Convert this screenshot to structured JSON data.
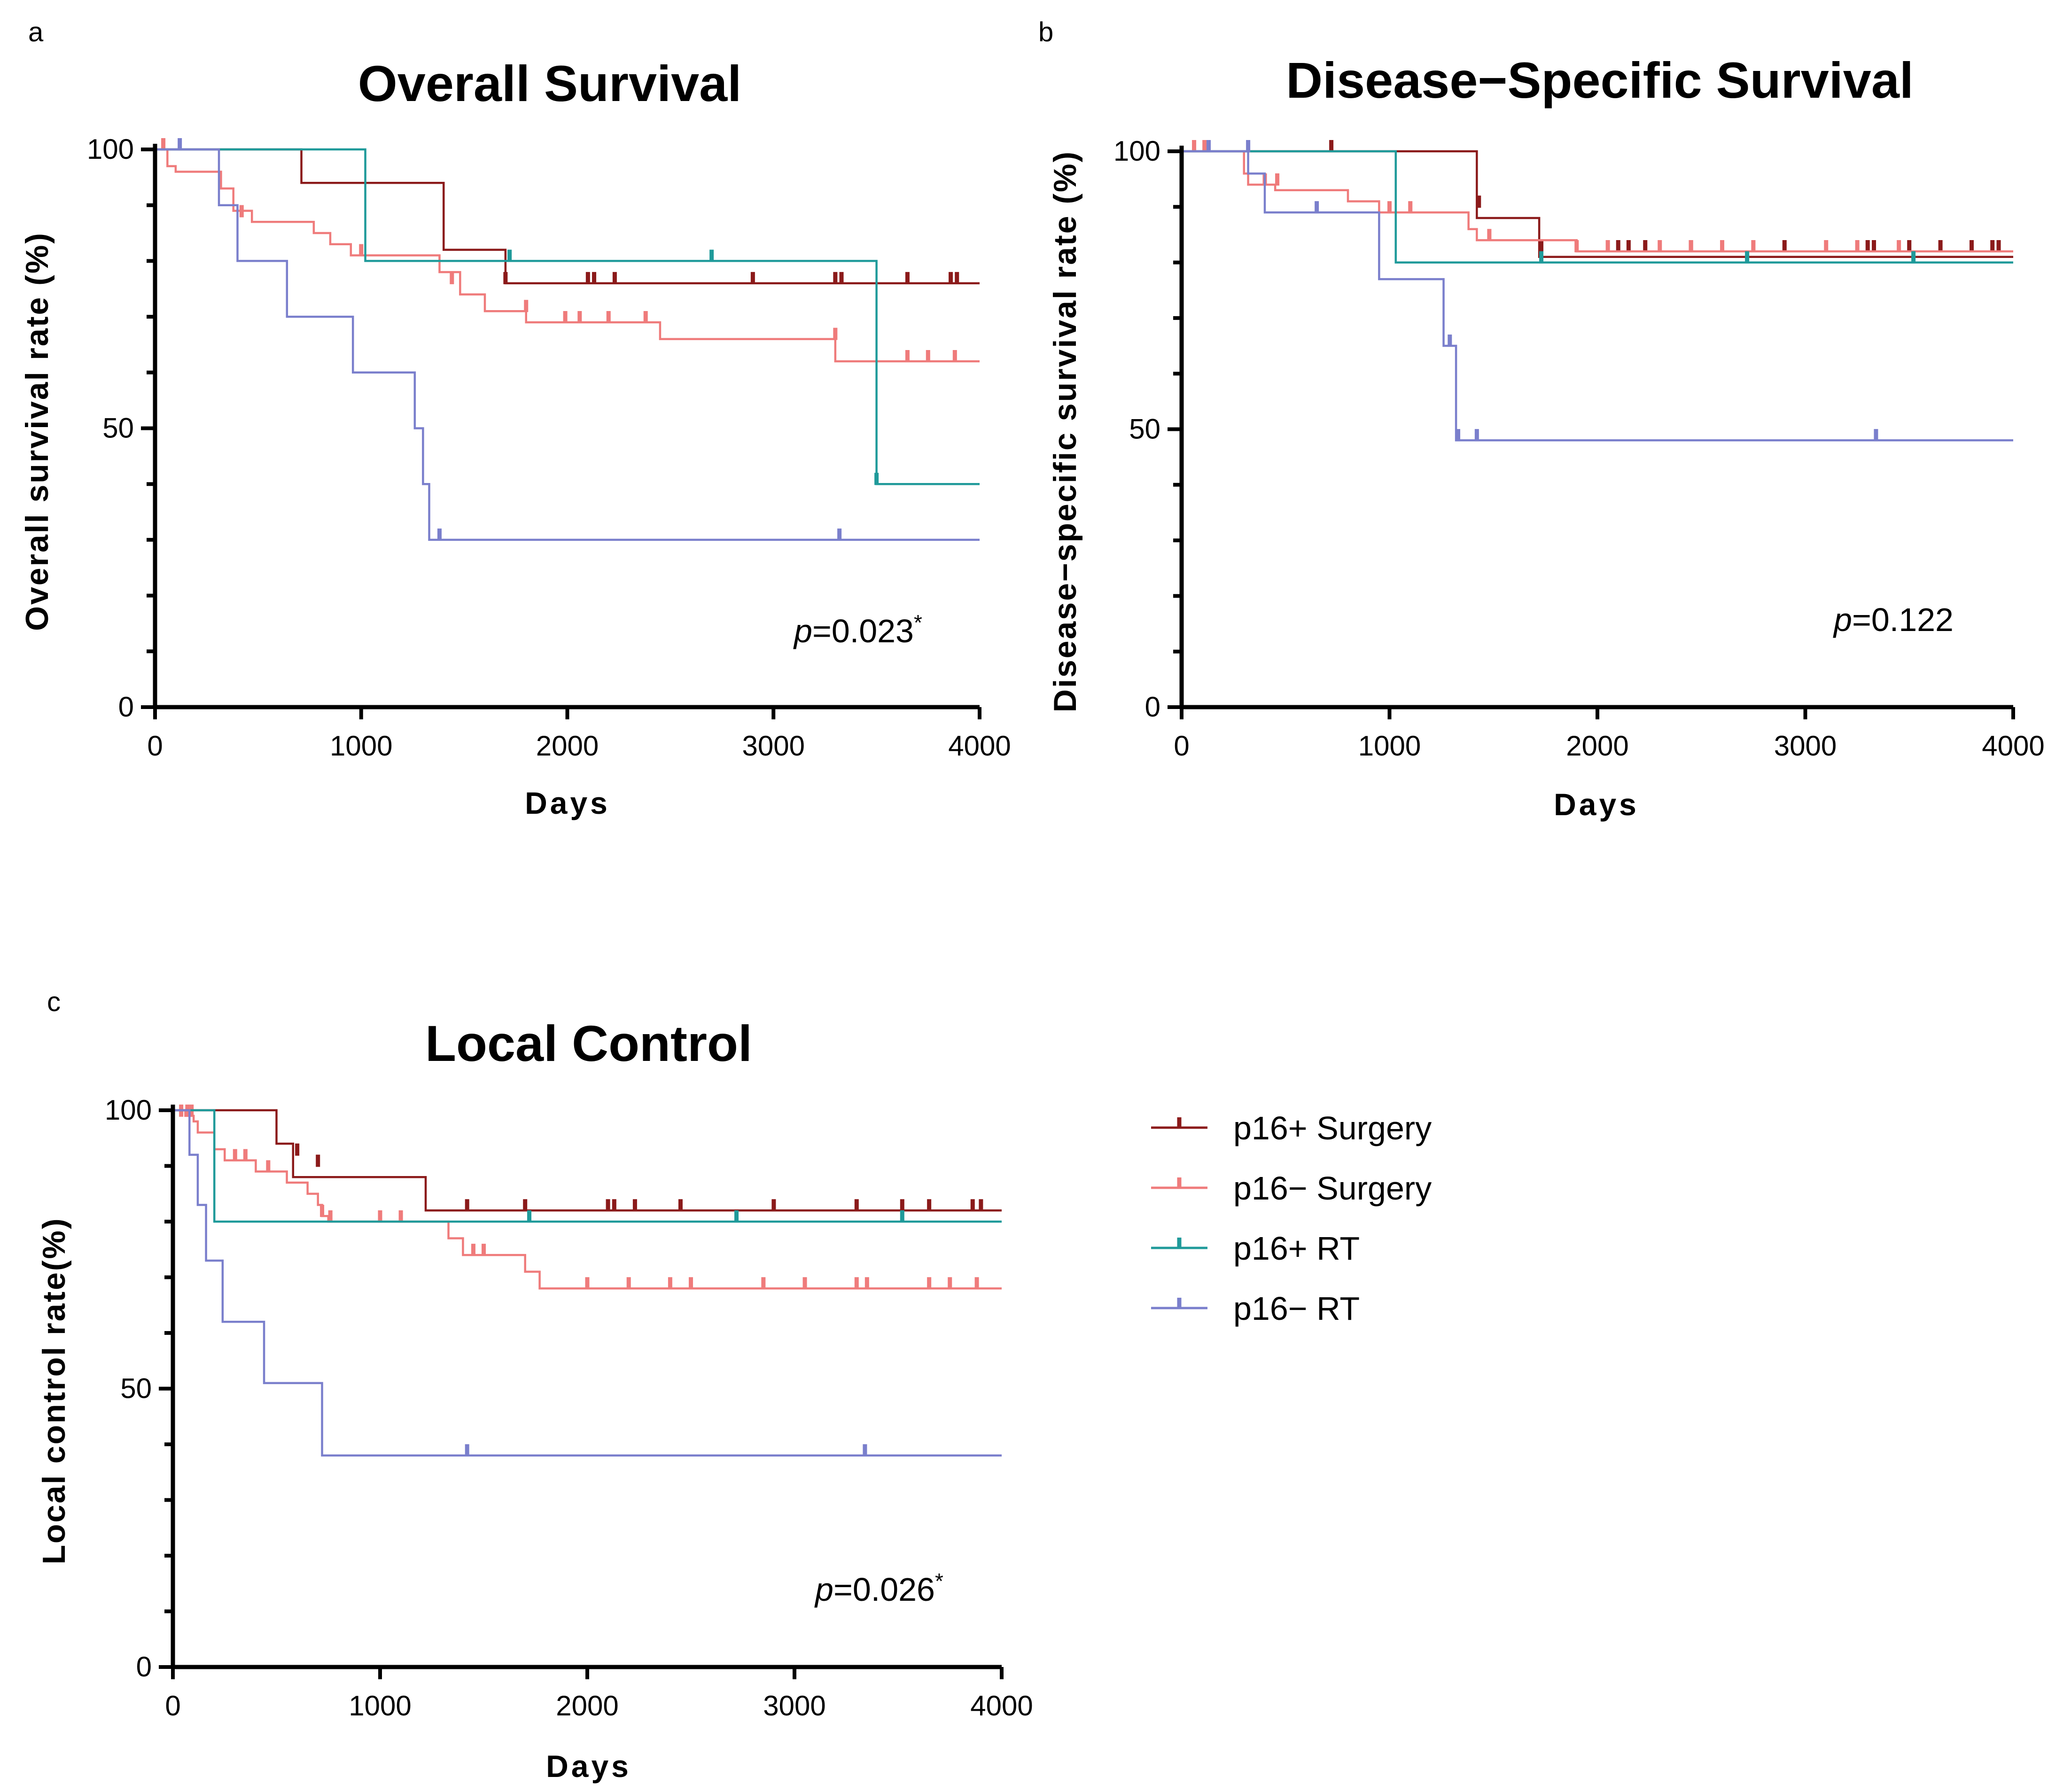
{
  "colors": {
    "p16pos_surgery": "#8b1a1a",
    "p16neg_surgery": "#ef7b7b",
    "p16pos_rt": "#1f9a9a",
    "p16neg_rt": "#7a7fcc"
  },
  "legend": {
    "items": [
      {
        "key": "p16pos_surgery",
        "label": "p16+ Surgery"
      },
      {
        "key": "p16neg_surgery",
        "label": "p16− Surgery"
      },
      {
        "key": "p16pos_rt",
        "label": "p16+ RT"
      },
      {
        "key": "p16neg_rt",
        "label": "p16− RT"
      }
    ]
  },
  "chart_data": [
    {
      "panel": "a",
      "type": "line",
      "step": true,
      "title": "Overall Survival",
      "xlabel": "Days",
      "ylabel": "Overall survival rate (%)",
      "xlim": [
        0,
        4000
      ],
      "ylim": [
        0,
        100
      ],
      "xticks": [
        "0",
        "1000",
        "2000",
        "3000",
        "4000"
      ],
      "yticks": [
        "0",
        "50",
        "100"
      ],
      "p_value": {
        "label": "p",
        "text": "=0.023",
        "mark": "*"
      },
      "series": [
        {
          "key": "p16pos_surgery",
          "name": "p16+ Surgery",
          "steps": [
            [
              0,
              100
            ],
            [
              710,
              94
            ],
            [
              1400,
              82
            ],
            [
              1700,
              76
            ],
            [
              4000,
              76
            ]
          ],
          "censored": [
            [
              1700,
              76
            ],
            [
              2100,
              76
            ],
            [
              2130,
              76
            ],
            [
              2230,
              76
            ],
            [
              2900,
              76
            ],
            [
              3300,
              76
            ],
            [
              3330,
              76
            ],
            [
              3650,
              76
            ],
            [
              3860,
              76
            ],
            [
              3890,
              76
            ]
          ]
        },
        {
          "key": "p16neg_surgery",
          "name": "p16− Surgery",
          "steps": [
            [
              0,
              100
            ],
            [
              60,
              97
            ],
            [
              100,
              96
            ],
            [
              320,
              93
            ],
            [
              380,
              89
            ],
            [
              470,
              87
            ],
            [
              770,
              85
            ],
            [
              850,
              83
            ],
            [
              950,
              81
            ],
            [
              1380,
              78
            ],
            [
              1480,
              74
            ],
            [
              1600,
              71
            ],
            [
              1800,
              69
            ],
            [
              2450,
              66
            ],
            [
              3300,
              62
            ],
            [
              4000,
              62
            ]
          ],
          "censored": [
            [
              40,
              100
            ],
            [
              420,
              88
            ],
            [
              1000,
              81
            ],
            [
              1440,
              76
            ],
            [
              1800,
              71
            ],
            [
              1990,
              69
            ],
            [
              2060,
              69
            ],
            [
              2200,
              69
            ],
            [
              2380,
              69
            ],
            [
              3300,
              66
            ],
            [
              3650,
              62
            ],
            [
              3750,
              62
            ],
            [
              3880,
              62
            ]
          ]
        },
        {
          "key": "p16pos_rt",
          "name": "p16+ RT",
          "steps": [
            [
              0,
              100
            ],
            [
              1020,
              80
            ],
            [
              3500,
              40
            ],
            [
              4000,
              40
            ]
          ],
          "censored": [
            [
              1720,
              80
            ],
            [
              2700,
              80
            ],
            [
              3500,
              40
            ]
          ]
        },
        {
          "key": "p16neg_rt",
          "name": "p16− RT",
          "steps": [
            [
              0,
              100
            ],
            [
              310,
              90
            ],
            [
              400,
              80
            ],
            [
              640,
              70
            ],
            [
              960,
              60
            ],
            [
              1260,
              50
            ],
            [
              1300,
              40
            ],
            [
              1330,
              30
            ],
            [
              4000,
              30
            ]
          ],
          "censored": [
            [
              120,
              100
            ],
            [
              1380,
              30
            ],
            [
              3320,
              30
            ]
          ]
        }
      ]
    },
    {
      "panel": "b",
      "type": "line",
      "step": true,
      "title": "Disease−Specific Survival",
      "xlabel": "Days",
      "ylabel": "Disease−specific survival rate (%)",
      "xlim": [
        0,
        4000
      ],
      "ylim": [
        0,
        100
      ],
      "xticks": [
        "0",
        "1000",
        "2000",
        "3000",
        "4000"
      ],
      "yticks": [
        "0",
        "50",
        "100"
      ],
      "p_value": {
        "label": "p",
        "text": "=0.122",
        "mark": ""
      },
      "series": [
        {
          "key": "p16pos_surgery",
          "name": "p16+ Surgery",
          "steps": [
            [
              0,
              100
            ],
            [
              1420,
              88
            ],
            [
              1720,
              81
            ],
            [
              4000,
              81
            ]
          ],
          "censored": [
            [
              720,
              100
            ],
            [
              1430,
              90
            ],
            [
              1730,
              82
            ],
            [
              2100,
              82
            ],
            [
              2150,
              82
            ],
            [
              2230,
              82
            ],
            [
              2450,
              82
            ],
            [
              2900,
              82
            ],
            [
              3300,
              82
            ],
            [
              3330,
              82
            ],
            [
              3500,
              82
            ],
            [
              3650,
              82
            ],
            [
              3800,
              82
            ],
            [
              3900,
              82
            ],
            [
              3930,
              82
            ]
          ]
        },
        {
          "key": "p16neg_surgery",
          "name": "p16− Surgery",
          "steps": [
            [
              0,
              100
            ],
            [
              300,
              96
            ],
            [
              320,
              94
            ],
            [
              450,
              93
            ],
            [
              800,
              91
            ],
            [
              950,
              89
            ],
            [
              1380,
              86
            ],
            [
              1420,
              84
            ],
            [
              1900,
              82
            ],
            [
              4000,
              82
            ]
          ],
          "censored": [
            [
              60,
              100
            ],
            [
              110,
              100
            ],
            [
              400,
              94
            ],
            [
              460,
              94
            ],
            [
              1000,
              89
            ],
            [
              1100,
              89
            ],
            [
              1480,
              84
            ],
            [
              1900,
              82
            ],
            [
              2050,
              82
            ],
            [
              2300,
              82
            ],
            [
              2450,
              82
            ],
            [
              2600,
              82
            ],
            [
              2750,
              82
            ],
            [
              3100,
              82
            ],
            [
              3250,
              82
            ],
            [
              3450,
              82
            ]
          ]
        },
        {
          "key": "p16pos_rt",
          "name": "p16+ RT",
          "steps": [
            [
              0,
              100
            ],
            [
              1030,
              80
            ],
            [
              4000,
              80
            ]
          ],
          "censored": [
            [
              1730,
              80
            ],
            [
              2720,
              80
            ],
            [
              3520,
              80
            ]
          ]
        },
        {
          "key": "p16neg_rt",
          "name": "p16− RT",
          "steps": [
            [
              0,
              100
            ],
            [
              320,
              96
            ],
            [
              400,
              89
            ],
            [
              950,
              77
            ],
            [
              1260,
              65
            ],
            [
              1320,
              48
            ],
            [
              4000,
              48
            ]
          ],
          "censored": [
            [
              130,
              100
            ],
            [
              320,
              100
            ],
            [
              650,
              89
            ],
            [
              1290,
              65
            ],
            [
              1330,
              48
            ],
            [
              1420,
              48
            ],
            [
              3340,
              48
            ]
          ]
        }
      ]
    },
    {
      "panel": "c",
      "type": "line",
      "step": true,
      "title": "Local Control",
      "xlabel": "Days",
      "ylabel": "Local control rate(%)",
      "xlim": [
        0,
        4000
      ],
      "ylim": [
        0,
        100
      ],
      "xticks": [
        "0",
        "1000",
        "2000",
        "3000",
        "4000"
      ],
      "yticks": [
        "0",
        "50",
        "100"
      ],
      "p_value": {
        "label": "p",
        "text": "=0.026",
        "mark": "*"
      },
      "series": [
        {
          "key": "p16pos_surgery",
          "name": "p16+ Surgery",
          "steps": [
            [
              0,
              100
            ],
            [
              500,
              94
            ],
            [
              580,
              88
            ],
            [
              1220,
              82
            ],
            [
              4000,
              82
            ]
          ],
          "censored": [
            [
              600,
              92
            ],
            [
              700,
              90
            ],
            [
              1420,
              82
            ],
            [
              1700,
              82
            ],
            [
              2100,
              82
            ],
            [
              2130,
              82
            ],
            [
              2230,
              82
            ],
            [
              2450,
              82
            ],
            [
              2900,
              82
            ],
            [
              3300,
              82
            ],
            [
              3520,
              82
            ],
            [
              3650,
              82
            ],
            [
              3860,
              82
            ],
            [
              3900,
              82
            ]
          ]
        },
        {
          "key": "p16neg_surgery",
          "name": "p16− Surgery",
          "steps": [
            [
              0,
              100
            ],
            [
              60,
              99
            ],
            [
              100,
              98
            ],
            [
              120,
              96
            ],
            [
              200,
              93
            ],
            [
              250,
              91
            ],
            [
              400,
              89
            ],
            [
              550,
              87
            ],
            [
              650,
              85
            ],
            [
              700,
              83
            ],
            [
              720,
              81
            ],
            [
              750,
              80
            ],
            [
              1330,
              77
            ],
            [
              1400,
              74
            ],
            [
              1700,
              71
            ],
            [
              1770,
              68
            ],
            [
              4000,
              68
            ]
          ],
          "censored": [
            [
              40,
              99
            ],
            [
              70,
              99
            ],
            [
              90,
              99
            ],
            [
              300,
              91
            ],
            [
              350,
              91
            ],
            [
              460,
              89
            ],
            [
              720,
              81
            ],
            [
              760,
              80
            ],
            [
              1000,
              80
            ],
            [
              1100,
              80
            ],
            [
              1450,
              74
            ],
            [
              1500,
              74
            ],
            [
              2000,
              68
            ],
            [
              2200,
              68
            ],
            [
              2400,
              68
            ],
            [
              2500,
              68
            ],
            [
              2850,
              68
            ],
            [
              3050,
              68
            ],
            [
              3300,
              68
            ],
            [
              3350,
              68
            ],
            [
              3650,
              68
            ],
            [
              3750,
              68
            ],
            [
              3880,
              68
            ]
          ]
        },
        {
          "key": "p16pos_rt",
          "name": "p16+ RT",
          "steps": [
            [
              0,
              100
            ],
            [
              200,
              80
            ],
            [
              4000,
              80
            ]
          ],
          "censored": [
            [
              1720,
              80
            ],
            [
              2720,
              80
            ],
            [
              3520,
              80
            ]
          ]
        },
        {
          "key": "p16neg_rt",
          "name": "p16− RT",
          "steps": [
            [
              0,
              100
            ],
            [
              80,
              92
            ],
            [
              120,
              83
            ],
            [
              160,
              73
            ],
            [
              240,
              62
            ],
            [
              440,
              51
            ],
            [
              720,
              38
            ],
            [
              4000,
              38
            ]
          ],
          "censored": [
            [
              1420,
              38
            ],
            [
              3340,
              38
            ]
          ]
        }
      ]
    }
  ]
}
